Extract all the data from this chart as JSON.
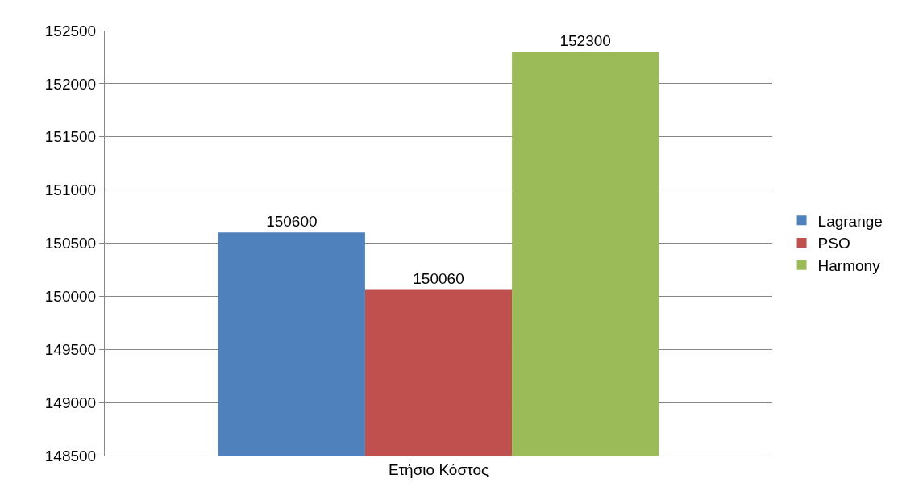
{
  "chart_data": {
    "type": "bar",
    "categories": [
      "Ετήσιο Κόστος"
    ],
    "series": [
      {
        "name": "Lagrange",
        "color": "#4f81bd",
        "values": [
          150600
        ]
      },
      {
        "name": "PSO",
        "color": "#c0504d",
        "values": [
          150060
        ]
      },
      {
        "name": "Harmony",
        "color": "#9bbb59",
        "values": [
          152300
        ]
      }
    ],
    "ylim": [
      148500,
      152500
    ],
    "yticks": [
      148500,
      149000,
      149500,
      150000,
      150500,
      151000,
      151500,
      152000,
      152500
    ],
    "grid": "y",
    "legend": "right",
    "data_labels": true
  }
}
